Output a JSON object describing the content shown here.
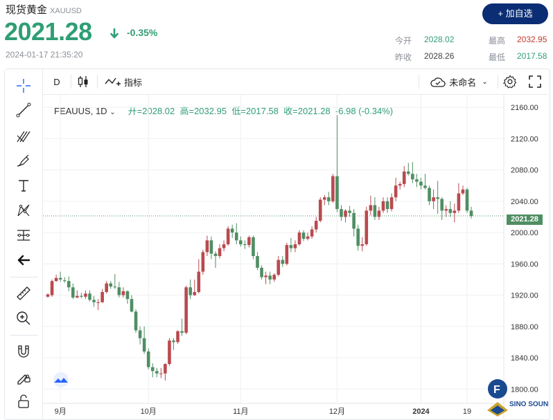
{
  "header": {
    "name": "现货黄金",
    "code": "XAUUSD",
    "price": "2021.28",
    "change": "-0.35%",
    "timestamp": "2024-01-17 21:35:20",
    "add_button": "+ 加自选",
    "stats": {
      "open_label": "今开",
      "open": "2028.02",
      "high_label": "最高",
      "high": "2032.95",
      "prev_label": "昨收",
      "prev": "2028.26",
      "low_label": "最低",
      "low": "2017.58"
    }
  },
  "toolbar": {
    "interval": "D",
    "indicators": "指标",
    "layout_name": "未命名"
  },
  "legend": {
    "symbol": "FEAUUS, 1D",
    "open": "开=2028.02",
    "high": "高=2032.95",
    "low": "低=2017.58",
    "close": "收=2021.28",
    "change": "-6.98 (-0.34%)"
  },
  "logo_text": "SINO SOUND",
  "logo_letter": "F",
  "colors": {
    "up": "#b94a4f",
    "down": "#4f8e63",
    "accent": "#0a2d73",
    "price_green": "#2f9e74"
  },
  "chart_data": {
    "type": "candlestick",
    "y_axis": {
      "ticks": [
        1800,
        1840,
        1880,
        1920,
        1960,
        2000,
        2040,
        2080,
        2120,
        2160
      ],
      "tick_labels": [
        "1800.00",
        "1840.00",
        "1880.00",
        "1920.00",
        "1960.00",
        "2000.00",
        "2040.00",
        "2080.00",
        "2120.00",
        "2160.00"
      ],
      "ylim": [
        1787,
        2176
      ]
    },
    "x_axis": {
      "labels": [
        "9月",
        "10月",
        "11月",
        "12月",
        "2024",
        "19"
      ]
    },
    "last_price": 2021.28,
    "last_price_label": "2021.28",
    "candles": [
      [
        "2023-08-29",
        1918,
        1922,
        1917,
        1921
      ],
      [
        "2023-08-30",
        1920,
        1940,
        1918,
        1938
      ],
      [
        "2023-08-31",
        1938,
        1946,
        1937,
        1942
      ],
      [
        "2023-09-01",
        1942,
        1950,
        1937,
        1940
      ],
      [
        "2023-09-04",
        1939,
        1943,
        1936,
        1938
      ],
      [
        "2023-09-05",
        1938,
        1944,
        1925,
        1930
      ],
      [
        "2023-09-06",
        1930,
        1935,
        1915,
        1917
      ],
      [
        "2023-09-07",
        1917,
        1926,
        1916,
        1919
      ],
      [
        "2023-09-08",
        1919,
        1923,
        1916,
        1918
      ],
      [
        "2023-09-11",
        1918,
        1926,
        1915,
        1922
      ],
      [
        "2023-09-12",
        1922,
        1926,
        1912,
        1914
      ],
      [
        "2023-09-13",
        1914,
        1919,
        1905,
        1911
      ],
      [
        "2023-09-14",
        1910,
        1915,
        1901,
        1911
      ],
      [
        "2023-09-15",
        1911,
        1928,
        1910,
        1924
      ],
      [
        "2023-09-18",
        1924,
        1938,
        1922,
        1935
      ],
      [
        "2023-09-19",
        1935,
        1938,
        1928,
        1931
      ],
      [
        "2023-09-20",
        1931,
        1947,
        1928,
        1930
      ],
      [
        "2023-09-21",
        1930,
        1937,
        1917,
        1920
      ],
      [
        "2023-09-22",
        1920,
        1930,
        1917,
        1925
      ],
      [
        "2023-09-25",
        1925,
        1926,
        1909,
        1915
      ],
      [
        "2023-09-26",
        1915,
        1920,
        1898,
        1899
      ],
      [
        "2023-09-27",
        1899,
        1902,
        1872,
        1875
      ],
      [
        "2023-09-28",
        1875,
        1880,
        1857,
        1865
      ],
      [
        "2023-09-29",
        1865,
        1880,
        1845,
        1848
      ],
      [
        "2023-10-02",
        1848,
        1852,
        1825,
        1828
      ],
      [
        "2023-10-03",
        1828,
        1833,
        1815,
        1823
      ],
      [
        "2023-10-04",
        1823,
        1827,
        1815,
        1820
      ],
      [
        "2023-10-05",
        1820,
        1827,
        1814,
        1820
      ],
      [
        "2023-10-06",
        1820,
        1833,
        1811,
        1832
      ],
      [
        "2023-10-09",
        1832,
        1865,
        1830,
        1862
      ],
      [
        "2023-10-10",
        1862,
        1865,
        1850,
        1860
      ],
      [
        "2023-10-11",
        1860,
        1875,
        1858,
        1874
      ],
      [
        "2023-10-12",
        1874,
        1890,
        1868,
        1872
      ],
      [
        "2023-10-13",
        1872,
        1932,
        1870,
        1930
      ],
      [
        "2023-10-16",
        1930,
        1940,
        1915,
        1920
      ],
      [
        "2023-10-17",
        1920,
        1940,
        1919,
        1924
      ],
      [
        "2023-10-18",
        1924,
        1966,
        1922,
        1950
      ],
      [
        "2023-10-19",
        1950,
        1978,
        1946,
        1975
      ],
      [
        "2023-10-20",
        1975,
        1996,
        1970,
        1990
      ],
      [
        "2023-10-23",
        1990,
        1995,
        1966,
        1973
      ],
      [
        "2023-10-24",
        1973,
        1976,
        1955,
        1970
      ],
      [
        "2023-10-25",
        1970,
        1985,
        1967,
        1980
      ],
      [
        "2023-10-26",
        1980,
        1990,
        1976,
        1985
      ],
      [
        "2023-10-27",
        1985,
        2008,
        1983,
        2005
      ],
      [
        "2023-10-30",
        2005,
        2010,
        1993,
        2000
      ],
      [
        "2023-10-31",
        2000,
        2012,
        1985,
        1990
      ],
      [
        "2023-11-01",
        1990,
        1995,
        1982,
        1985
      ],
      [
        "2023-11-02",
        1985,
        1990,
        1979,
        1984
      ],
      [
        "2023-11-03",
        1984,
        1996,
        1981,
        1994
      ],
      [
        "2023-11-06",
        1994,
        1996,
        1966,
        1970
      ],
      [
        "2023-11-07",
        1970,
        1975,
        1952,
        1955
      ],
      [
        "2023-11-08",
        1955,
        1958,
        1940,
        1943
      ],
      [
        "2023-11-09",
        1943,
        1950,
        1934,
        1945
      ],
      [
        "2023-11-10",
        1945,
        1950,
        1934,
        1940
      ],
      [
        "2023-11-13",
        1940,
        1948,
        1937,
        1946
      ],
      [
        "2023-11-14",
        1946,
        1970,
        1944,
        1965
      ],
      [
        "2023-11-15",
        1965,
        1970,
        1956,
        1960
      ],
      [
        "2023-11-16",
        1960,
        1987,
        1958,
        1984
      ],
      [
        "2023-11-17",
        1984,
        1993,
        1975,
        1980
      ],
      [
        "2023-11-20",
        1980,
        1990,
        1975,
        1985
      ],
      [
        "2023-11-21",
        1985,
        2003,
        1983,
        2000
      ],
      [
        "2023-11-22",
        2000,
        2003,
        1989,
        1992
      ],
      [
        "2023-11-23",
        1992,
        2000,
        1990,
        1995
      ],
      [
        "2023-11-24",
        1995,
        2008,
        1992,
        2004
      ],
      [
        "2023-11-27",
        2004,
        2020,
        2000,
        2015
      ],
      [
        "2023-11-28",
        2015,
        2045,
        2013,
        2042
      ],
      [
        "2023-11-29",
        2042,
        2048,
        2035,
        2045
      ],
      [
        "2023-11-30",
        2045,
        2052,
        2035,
        2040
      ],
      [
        "2023-12-01",
        2040,
        2075,
        2038,
        2072
      ],
      [
        "2023-12-04",
        2072,
        2150,
        2026,
        2030
      ],
      [
        "2023-12-05",
        2030,
        2035,
        2015,
        2020
      ],
      [
        "2023-12-06",
        2020,
        2030,
        2013,
        2028
      ],
      [
        "2023-12-07",
        2028,
        2034,
        2020,
        2025
      ],
      [
        "2023-12-08",
        2025,
        2030,
        1995,
        2005
      ],
      [
        "2023-12-11",
        2005,
        2010,
        1977,
        1983
      ],
      [
        "2023-12-12",
        1983,
        1994,
        1976,
        1985
      ],
      [
        "2023-12-13",
        1985,
        2033,
        1983,
        2028
      ],
      [
        "2023-12-14",
        2028,
        2047,
        2022,
        2035
      ],
      [
        "2023-12-15",
        2035,
        2045,
        2016,
        2020
      ],
      [
        "2023-12-18",
        2020,
        2033,
        2016,
        2028
      ],
      [
        "2023-12-19",
        2028,
        2045,
        2025,
        2040
      ],
      [
        "2023-12-20",
        2040,
        2045,
        2025,
        2030
      ],
      [
        "2023-12-21",
        2030,
        2050,
        2027,
        2045
      ],
      [
        "2023-12-22",
        2045,
        2070,
        2040,
        2060
      ],
      [
        "2023-12-25",
        2060,
        2065,
        2055,
        2062
      ],
      [
        "2023-12-26",
        2062,
        2085,
        2058,
        2078
      ],
      [
        "2023-12-27",
        2078,
        2089,
        2073,
        2075
      ],
      [
        "2023-12-28",
        2075,
        2090,
        2063,
        2068
      ],
      [
        "2023-12-29",
        2068,
        2075,
        2058,
        2065
      ],
      [
        "2024-01-01",
        2065,
        2070,
        2055,
        2060
      ],
      [
        "2024-01-02",
        2060,
        2075,
        2055,
        2057
      ],
      [
        "2024-01-03",
        2057,
        2060,
        2035,
        2040
      ],
      [
        "2024-01-04",
        2040,
        2055,
        2030,
        2045
      ],
      [
        "2024-01-05",
        2045,
        2066,
        2024,
        2043
      ],
      [
        "2024-01-08",
        2043,
        2045,
        2016,
        2028
      ],
      [
        "2024-01-09",
        2028,
        2035,
        2020,
        2030
      ],
      [
        "2024-01-10",
        2030,
        2040,
        2020,
        2025
      ],
      [
        "2024-01-11",
        2025,
        2037,
        2013,
        2028
      ],
      [
        "2024-01-12",
        2028,
        2063,
        2025,
        2050
      ],
      [
        "2024-01-15",
        2050,
        2060,
        2048,
        2055
      ],
      [
        "2024-01-16",
        2055,
        2057,
        2025,
        2028
      ],
      [
        "2024-01-17",
        2028,
        2033,
        2018,
        2021
      ]
    ]
  }
}
